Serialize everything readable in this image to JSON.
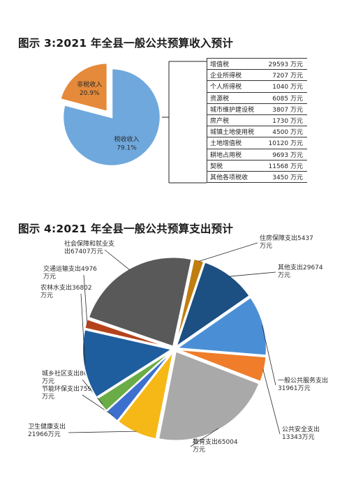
{
  "chart_data": [
    {
      "type": "pie",
      "title": "图示 3:2021 年全县一般公共预算收入预计",
      "slices": [
        {
          "label": "税收收入",
          "percent": "79.1%",
          "value": 79.1,
          "color": "#6fa8dc",
          "exploded": false
        },
        {
          "label": "非税收入",
          "percent": "20.9%",
          "value": 20.9,
          "color": "#e58a3a",
          "exploded": true
        }
      ],
      "breakdown_table": [
        {
          "name": "增值税",
          "value": "29593 万元"
        },
        {
          "name": "企业所得税",
          "value": "7207 万元"
        },
        {
          "name": "个人所得税",
          "value": "1040 万元"
        },
        {
          "name": "资源税",
          "value": "6085 万元"
        },
        {
          "name": "城市维护建设税",
          "value": "3807 万元"
        },
        {
          "name": "房产税",
          "value": "1730 万元"
        },
        {
          "name": "城镇土地使用税",
          "value": "4500 万元"
        },
        {
          "name": "土地增值税",
          "value": "10120 万元"
        },
        {
          "name": "耕地占用税",
          "value": "9693 万元"
        },
        {
          "name": "契税",
          "value": "11568 万元"
        },
        {
          "name": "其他各项税收",
          "value": "3450 万元"
        }
      ]
    },
    {
      "type": "pie",
      "title": "图示 4:2021 年全县一般公共预算支出预计",
      "slices": [
        {
          "label": [
            "住房保障支出5437",
            "万元"
          ],
          "value": 5437,
          "color": "#c07d10"
        },
        {
          "label": [
            "其他支出29674",
            "万元"
          ],
          "value": 29674,
          "color": "#1c4f82"
        },
        {
          "label": [
            "一般公共服务支出",
            "31961万元"
          ],
          "value": 31961,
          "color": "#4a8fd6"
        },
        {
          "label": [
            "公共安全支出",
            "13343万元"
          ],
          "value": 13343,
          "color": "#ef7d2a"
        },
        {
          "label": [
            "教育支出65004",
            "万元"
          ],
          "value": 65004,
          "color": "#a9a9a9"
        },
        {
          "label": [
            "卫生健康支出",
            "21966万元"
          ],
          "value": 21966,
          "color": "#f5b817"
        },
        {
          "label": [
            "节能环保支出7593",
            "万元"
          ],
          "value": 7593,
          "color": "#3d6fcf"
        },
        {
          "label": [
            "城乡社区支出8005",
            "万元"
          ],
          "value": 8005,
          "color": "#6aac46"
        },
        {
          "label": [
            "农林水支出36802",
            "万元"
          ],
          "value": 36802,
          "color": "#1e5e9e"
        },
        {
          "label": [
            "交通运输支出4976",
            "万元"
          ],
          "value": 4976,
          "color": "#b4431b"
        },
        {
          "label": [
            "社会保障和就业支",
            "出67407万元"
          ],
          "value": 67407,
          "color": "#595959"
        }
      ]
    }
  ]
}
